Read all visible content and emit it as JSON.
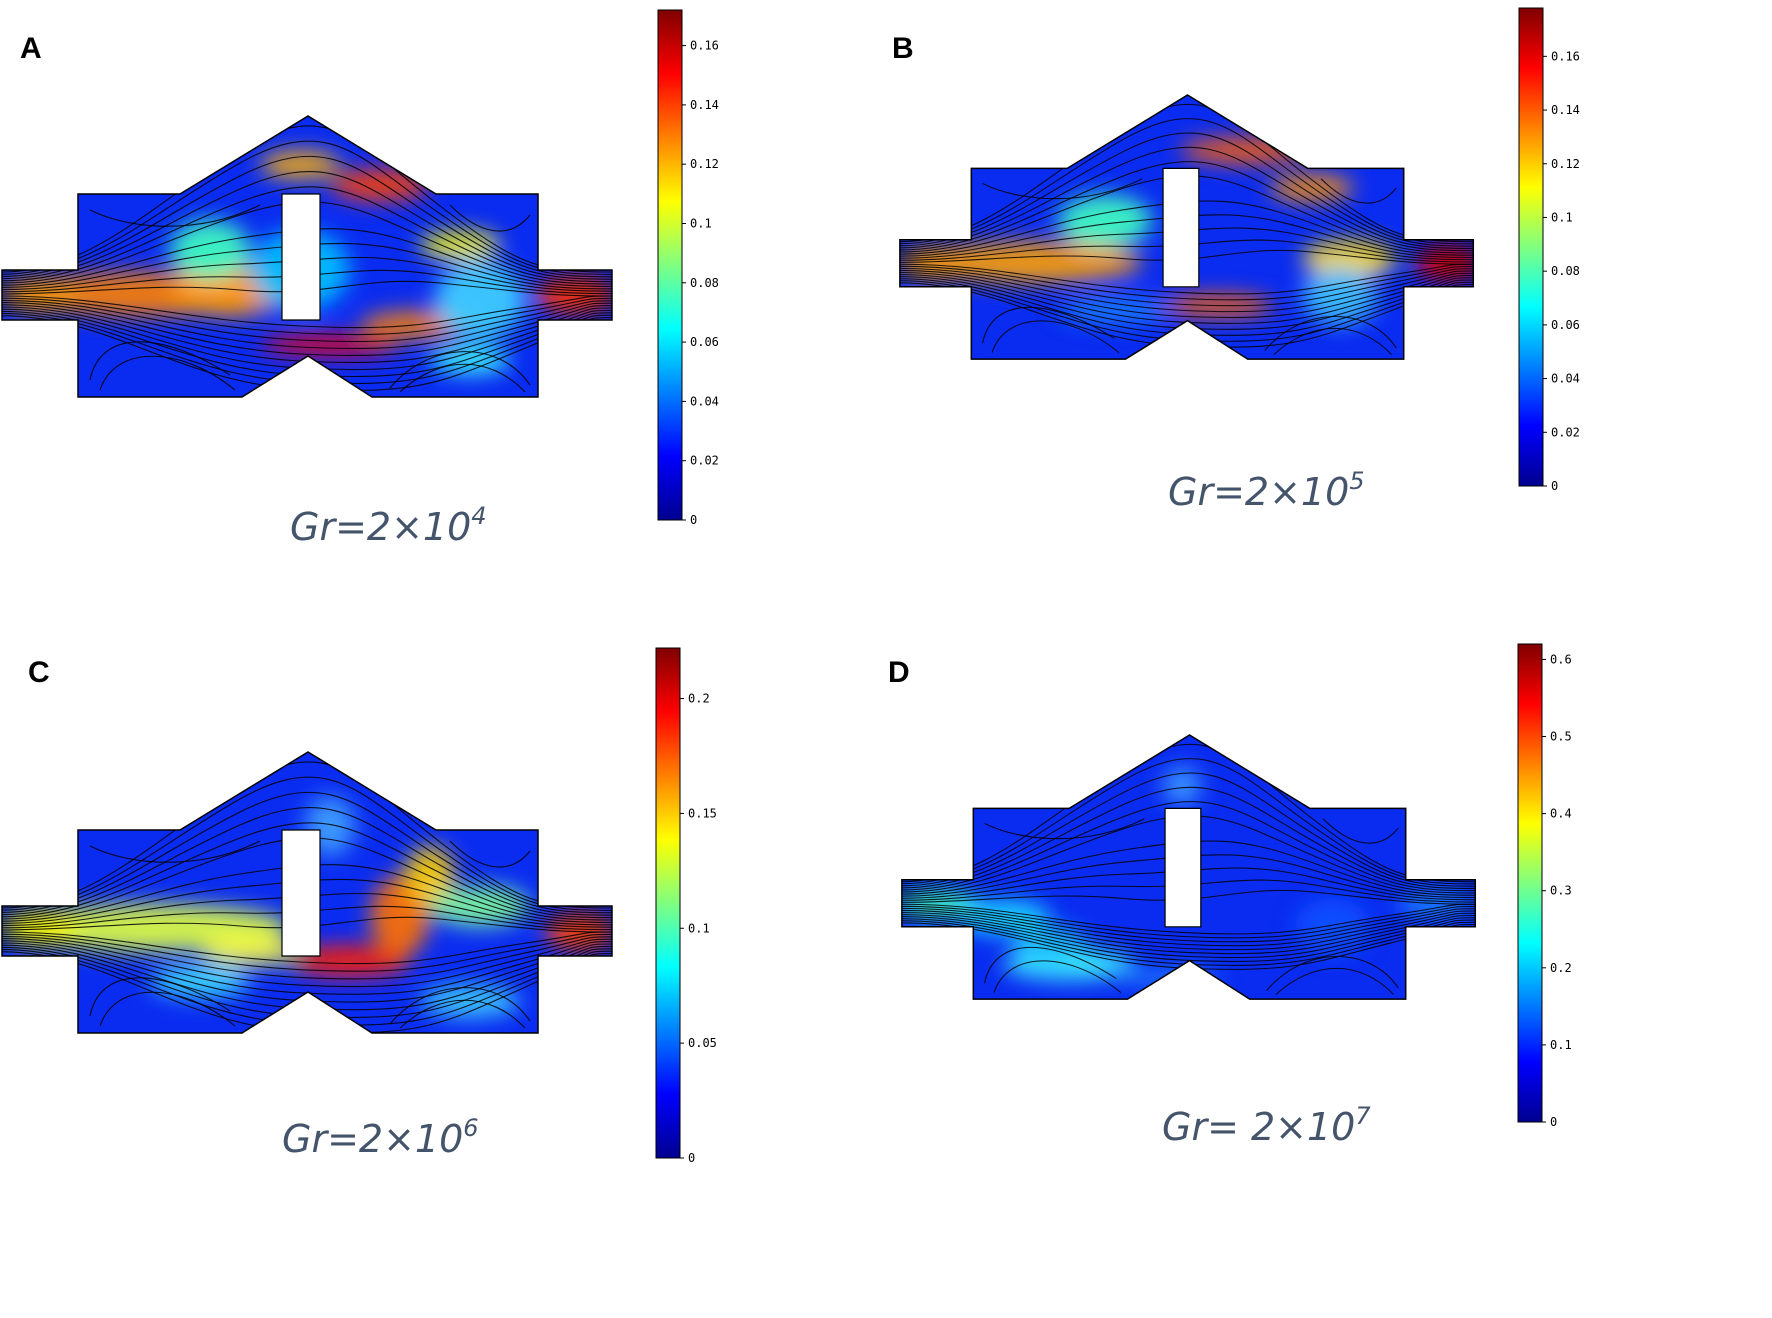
{
  "panels": [
    {
      "id": "A",
      "letter": "A",
      "caption_base": "Gr=2×10",
      "caption_exp": "4",
      "colorbar": {
        "ticks": [
          "0",
          "0.02",
          "0.04",
          "0.06",
          "0.08",
          "0.1",
          "0.12",
          "0.14",
          "0.16"
        ],
        "max": 0.172
      },
      "field": "A"
    },
    {
      "id": "B",
      "letter": "B",
      "caption_base": "Gr=2×10",
      "caption_exp": "5",
      "colorbar": {
        "ticks": [
          "0",
          "0.02",
          "0.04",
          "0.06",
          "0.08",
          "0.1",
          "0.12",
          "0.14",
          "0.16"
        ],
        "max": 0.178
      },
      "field": "B"
    },
    {
      "id": "C",
      "letter": "C",
      "caption_base": "Gr=2×10",
      "caption_exp": "6",
      "colorbar": {
        "ticks": [
          "0",
          "0.05",
          "0.1",
          "0.15",
          "0.2"
        ],
        "max": 0.222
      },
      "field": "C"
    },
    {
      "id": "D",
      "letter": "D",
      "caption_base": "Gr= 2×10",
      "caption_exp": "7",
      "colorbar": {
        "ticks": [
          "0",
          "0.1",
          "0.2",
          "0.3",
          "0.4",
          "0.5",
          "0.6"
        ],
        "max": 0.62
      },
      "field": "D"
    }
  ],
  "colormap": [
    "#00008f",
    "#0000ff",
    "#0080ff",
    "#00ffff",
    "#80ff80",
    "#ffff00",
    "#ff8000",
    "#ff0000",
    "#800000"
  ]
}
